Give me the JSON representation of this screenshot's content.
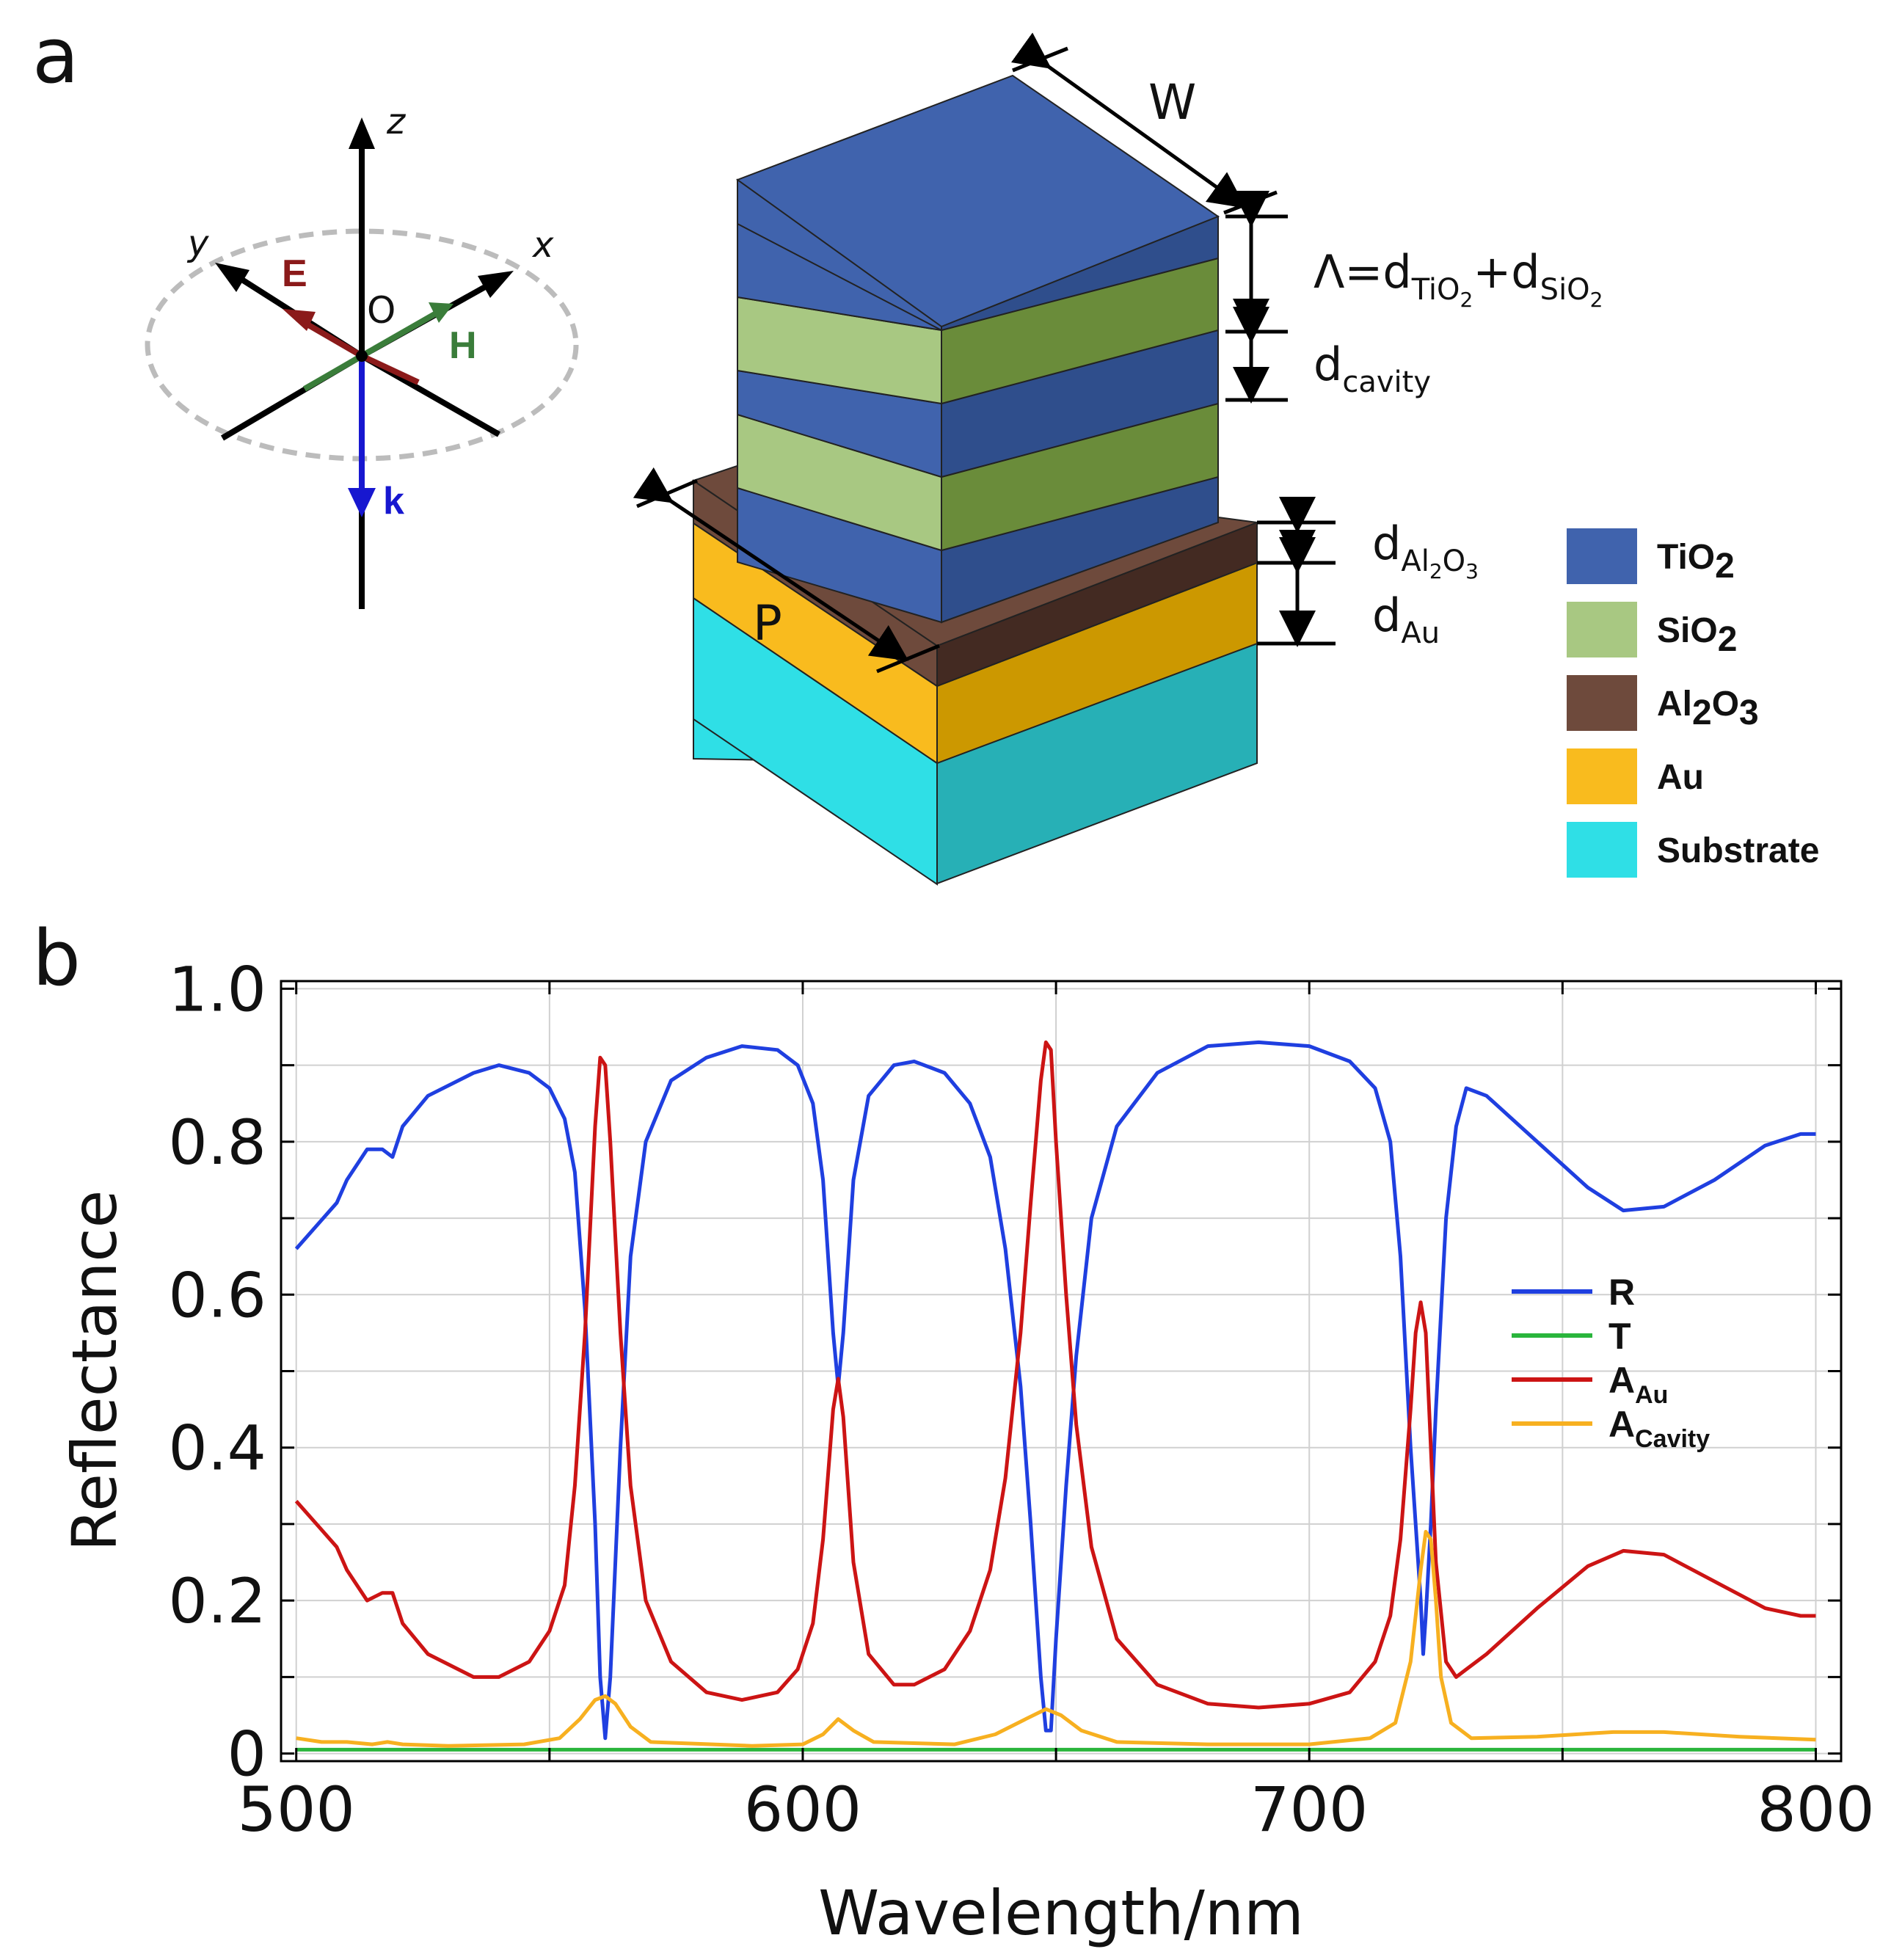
{
  "panel_a": {
    "label": "a",
    "axes": {
      "z": "z",
      "y": "y",
      "x": "x",
      "origin": "O",
      "E": "E",
      "H": "H",
      "k": "k"
    },
    "dimensions": {
      "W": "W",
      "P": "P",
      "period": {
        "main": "Λ=d",
        "sub1": "TiO",
        "sub1_sub": "2",
        "plus": "+d",
        "sub2": "SiO",
        "sub2_sub": "2"
      },
      "cavity": {
        "main": "d",
        "sub": "cavity"
      },
      "al2o3": {
        "main": "d",
        "sub_a": "Al",
        "sub_b": "2",
        "sub_c": "O",
        "sub_d": "3"
      },
      "au": {
        "main": "d",
        "sub": "Au"
      }
    },
    "legend": [
      {
        "parts": [
          "TiO",
          "2"
        ],
        "color": "#4063ad"
      },
      {
        "parts": [
          "SiO",
          "2"
        ],
        "color": "#a8c882"
      },
      {
        "parts": [
          "Al",
          "2",
          "O",
          "3"
        ],
        "color": "#6e4a3c"
      },
      {
        "parts": [
          "Au",
          ""
        ],
        "color": "#f9bb1e"
      },
      {
        "parts": [
          "Substrate",
          ""
        ],
        "color": "#2fdfe6"
      }
    ]
  },
  "panel_b": {
    "label": "b"
  },
  "chart_data": {
    "type": "line",
    "xlabel": "Wavelength/nm",
    "ylabel": "Reflectance",
    "xlim": [
      497,
      805
    ],
    "ylim": [
      -0.01,
      1.01
    ],
    "xticks": [
      "500",
      "600",
      "700",
      "800"
    ],
    "xtick_values": [
      500,
      600,
      700,
      800
    ],
    "yticks": [
      "0",
      "0.2",
      "0.4",
      "0.6",
      "0.8",
      "1.0"
    ],
    "ytick_values": [
      0,
      0.2,
      0.4,
      0.6,
      0.8,
      1.0
    ],
    "grid": true,
    "legend_position": "right",
    "series": [
      {
        "name": "R",
        "legend_main": "R",
        "legend_sub": "",
        "color": "#1f3fe0",
        "points": [
          [
            500,
            0.66
          ],
          [
            504,
            0.69
          ],
          [
            508,
            0.72
          ],
          [
            510,
            0.75
          ],
          [
            514,
            0.79
          ],
          [
            517,
            0.79
          ],
          [
            519,
            0.78
          ],
          [
            521,
            0.82
          ],
          [
            526,
            0.86
          ],
          [
            535,
            0.89
          ],
          [
            540,
            0.9
          ],
          [
            546,
            0.89
          ],
          [
            550,
            0.87
          ],
          [
            553,
            0.83
          ],
          [
            555,
            0.76
          ],
          [
            557,
            0.58
          ],
          [
            559,
            0.3
          ],
          [
            560,
            0.1
          ],
          [
            561,
            0.02
          ],
          [
            562,
            0.1
          ],
          [
            564,
            0.4
          ],
          [
            566,
            0.65
          ],
          [
            569,
            0.8
          ],
          [
            574,
            0.88
          ],
          [
            581,
            0.91
          ],
          [
            588,
            0.925
          ],
          [
            595,
            0.92
          ],
          [
            599,
            0.9
          ],
          [
            602,
            0.85
          ],
          [
            604,
            0.75
          ],
          [
            606,
            0.55
          ],
          [
            607,
            0.48
          ],
          [
            608,
            0.55
          ],
          [
            610,
            0.75
          ],
          [
            613,
            0.86
          ],
          [
            618,
            0.9
          ],
          [
            622,
            0.905
          ],
          [
            628,
            0.89
          ],
          [
            633,
            0.85
          ],
          [
            637,
            0.78
          ],
          [
            640,
            0.66
          ],
          [
            643,
            0.48
          ],
          [
            645,
            0.3
          ],
          [
            647,
            0.1
          ],
          [
            648,
            0.03
          ],
          [
            649,
            0.03
          ],
          [
            650,
            0.15
          ],
          [
            652,
            0.35
          ],
          [
            654,
            0.52
          ],
          [
            657,
            0.7
          ],
          [
            662,
            0.82
          ],
          [
            670,
            0.89
          ],
          [
            680,
            0.925
          ],
          [
            690,
            0.93
          ],
          [
            700,
            0.925
          ],
          [
            708,
            0.905
          ],
          [
            713,
            0.87
          ],
          [
            716,
            0.8
          ],
          [
            718,
            0.65
          ],
          [
            720,
            0.4
          ],
          [
            722,
            0.2
          ],
          [
            722.5,
            0.13
          ],
          [
            723,
            0.18
          ],
          [
            724,
            0.3
          ],
          [
            725,
            0.45
          ],
          [
            727,
            0.7
          ],
          [
            729,
            0.82
          ],
          [
            731,
            0.87
          ],
          [
            735,
            0.86
          ],
          [
            745,
            0.8
          ],
          [
            755,
            0.74
          ],
          [
            762,
            0.71
          ],
          [
            770,
            0.715
          ],
          [
            780,
            0.75
          ],
          [
            790,
            0.795
          ],
          [
            797,
            0.81
          ],
          [
            800,
            0.81
          ]
        ]
      },
      {
        "name": "T",
        "legend_main": "T",
        "legend_sub": "",
        "color": "#2ab53c",
        "points": [
          [
            500,
            0.005
          ],
          [
            600,
            0.005
          ],
          [
            700,
            0.005
          ],
          [
            800,
            0.005
          ]
        ]
      },
      {
        "name": "A_Au",
        "legend_main": "A",
        "legend_sub": "Au",
        "color": "#cc1414",
        "points": [
          [
            500,
            0.33
          ],
          [
            504,
            0.3
          ],
          [
            508,
            0.27
          ],
          [
            510,
            0.24
          ],
          [
            514,
            0.2
          ],
          [
            517,
            0.21
          ],
          [
            519,
            0.21
          ],
          [
            521,
            0.17
          ],
          [
            526,
            0.13
          ],
          [
            535,
            0.1
          ],
          [
            540,
            0.1
          ],
          [
            546,
            0.12
          ],
          [
            550,
            0.16
          ],
          [
            553,
            0.22
          ],
          [
            555,
            0.35
          ],
          [
            557,
            0.55
          ],
          [
            559,
            0.82
          ],
          [
            560,
            0.91
          ],
          [
            561,
            0.9
          ],
          [
            562,
            0.8
          ],
          [
            564,
            0.55
          ],
          [
            566,
            0.35
          ],
          [
            569,
            0.2
          ],
          [
            574,
            0.12
          ],
          [
            581,
            0.08
          ],
          [
            588,
            0.07
          ],
          [
            595,
            0.08
          ],
          [
            599,
            0.11
          ],
          [
            602,
            0.17
          ],
          [
            604,
            0.28
          ],
          [
            606,
            0.45
          ],
          [
            607,
            0.49
          ],
          [
            608,
            0.44
          ],
          [
            610,
            0.25
          ],
          [
            613,
            0.13
          ],
          [
            618,
            0.09
          ],
          [
            622,
            0.09
          ],
          [
            628,
            0.11
          ],
          [
            633,
            0.16
          ],
          [
            637,
            0.24
          ],
          [
            640,
            0.36
          ],
          [
            643,
            0.55
          ],
          [
            645,
            0.72
          ],
          [
            647,
            0.88
          ],
          [
            648,
            0.93
          ],
          [
            649,
            0.92
          ],
          [
            650,
            0.8
          ],
          [
            652,
            0.6
          ],
          [
            654,
            0.43
          ],
          [
            657,
            0.27
          ],
          [
            662,
            0.15
          ],
          [
            670,
            0.09
          ],
          [
            680,
            0.065
          ],
          [
            690,
            0.06
          ],
          [
            700,
            0.065
          ],
          [
            708,
            0.08
          ],
          [
            713,
            0.12
          ],
          [
            716,
            0.18
          ],
          [
            718,
            0.28
          ],
          [
            720,
            0.45
          ],
          [
            721,
            0.55
          ],
          [
            722,
            0.59
          ],
          [
            723,
            0.55
          ],
          [
            724,
            0.4
          ],
          [
            725,
            0.25
          ],
          [
            727,
            0.12
          ],
          [
            729,
            0.1
          ],
          [
            731,
            0.11
          ],
          [
            735,
            0.13
          ],
          [
            745,
            0.19
          ],
          [
            755,
            0.245
          ],
          [
            762,
            0.265
          ],
          [
            770,
            0.26
          ],
          [
            780,
            0.225
          ],
          [
            790,
            0.19
          ],
          [
            797,
            0.18
          ],
          [
            800,
            0.18
          ]
        ]
      },
      {
        "name": "A_Cavity",
        "legend_main": "A",
        "legend_sub": "Cavity",
        "color": "#f7b020",
        "points": [
          [
            500,
            0.02
          ],
          [
            505,
            0.015
          ],
          [
            510,
            0.015
          ],
          [
            515,
            0.012
          ],
          [
            518,
            0.015
          ],
          [
            521,
            0.012
          ],
          [
            530,
            0.01
          ],
          [
            545,
            0.012
          ],
          [
            552,
            0.02
          ],
          [
            556,
            0.045
          ],
          [
            559,
            0.07
          ],
          [
            561,
            0.075
          ],
          [
            563,
            0.065
          ],
          [
            566,
            0.035
          ],
          [
            570,
            0.015
          ],
          [
            590,
            0.01
          ],
          [
            600,
            0.012
          ],
          [
            604,
            0.025
          ],
          [
            607,
            0.045
          ],
          [
            610,
            0.03
          ],
          [
            614,
            0.015
          ],
          [
            630,
            0.012
          ],
          [
            638,
            0.025
          ],
          [
            644,
            0.045
          ],
          [
            648,
            0.058
          ],
          [
            651,
            0.05
          ],
          [
            655,
            0.03
          ],
          [
            662,
            0.015
          ],
          [
            680,
            0.012
          ],
          [
            700,
            0.012
          ],
          [
            712,
            0.02
          ],
          [
            717,
            0.04
          ],
          [
            720,
            0.12
          ],
          [
            722,
            0.24
          ],
          [
            723,
            0.29
          ],
          [
            724,
            0.28
          ],
          [
            725,
            0.2
          ],
          [
            726,
            0.1
          ],
          [
            728,
            0.04
          ],
          [
            732,
            0.02
          ],
          [
            745,
            0.022
          ],
          [
            760,
            0.028
          ],
          [
            770,
            0.028
          ],
          [
            785,
            0.022
          ],
          [
            800,
            0.018
          ]
        ]
      }
    ]
  }
}
